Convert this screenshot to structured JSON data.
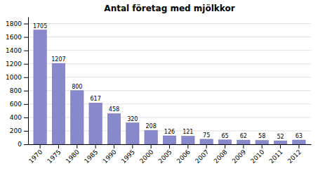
{
  "chart_data": {
    "type": "bar",
    "title": "Antal företag med mjölkkor",
    "categories": [
      "1970",
      "1975",
      "1980",
      "1985",
      "1990",
      "1995",
      "2000",
      "2005",
      "2006",
      "2007",
      "2008",
      "2009",
      "2010",
      "2011",
      "2012"
    ],
    "values": [
      1705,
      1207,
      800,
      617,
      458,
      320,
      208,
      126,
      121,
      75,
      65,
      62,
      58,
      52,
      63
    ],
    "color": "#8888cc",
    "ylim": [
      0,
      1900
    ],
    "yticks": [
      0,
      200,
      400,
      600,
      800,
      1000,
      1200,
      1400,
      1600,
      1800
    ],
    "grid": true,
    "data_labels": true
  }
}
